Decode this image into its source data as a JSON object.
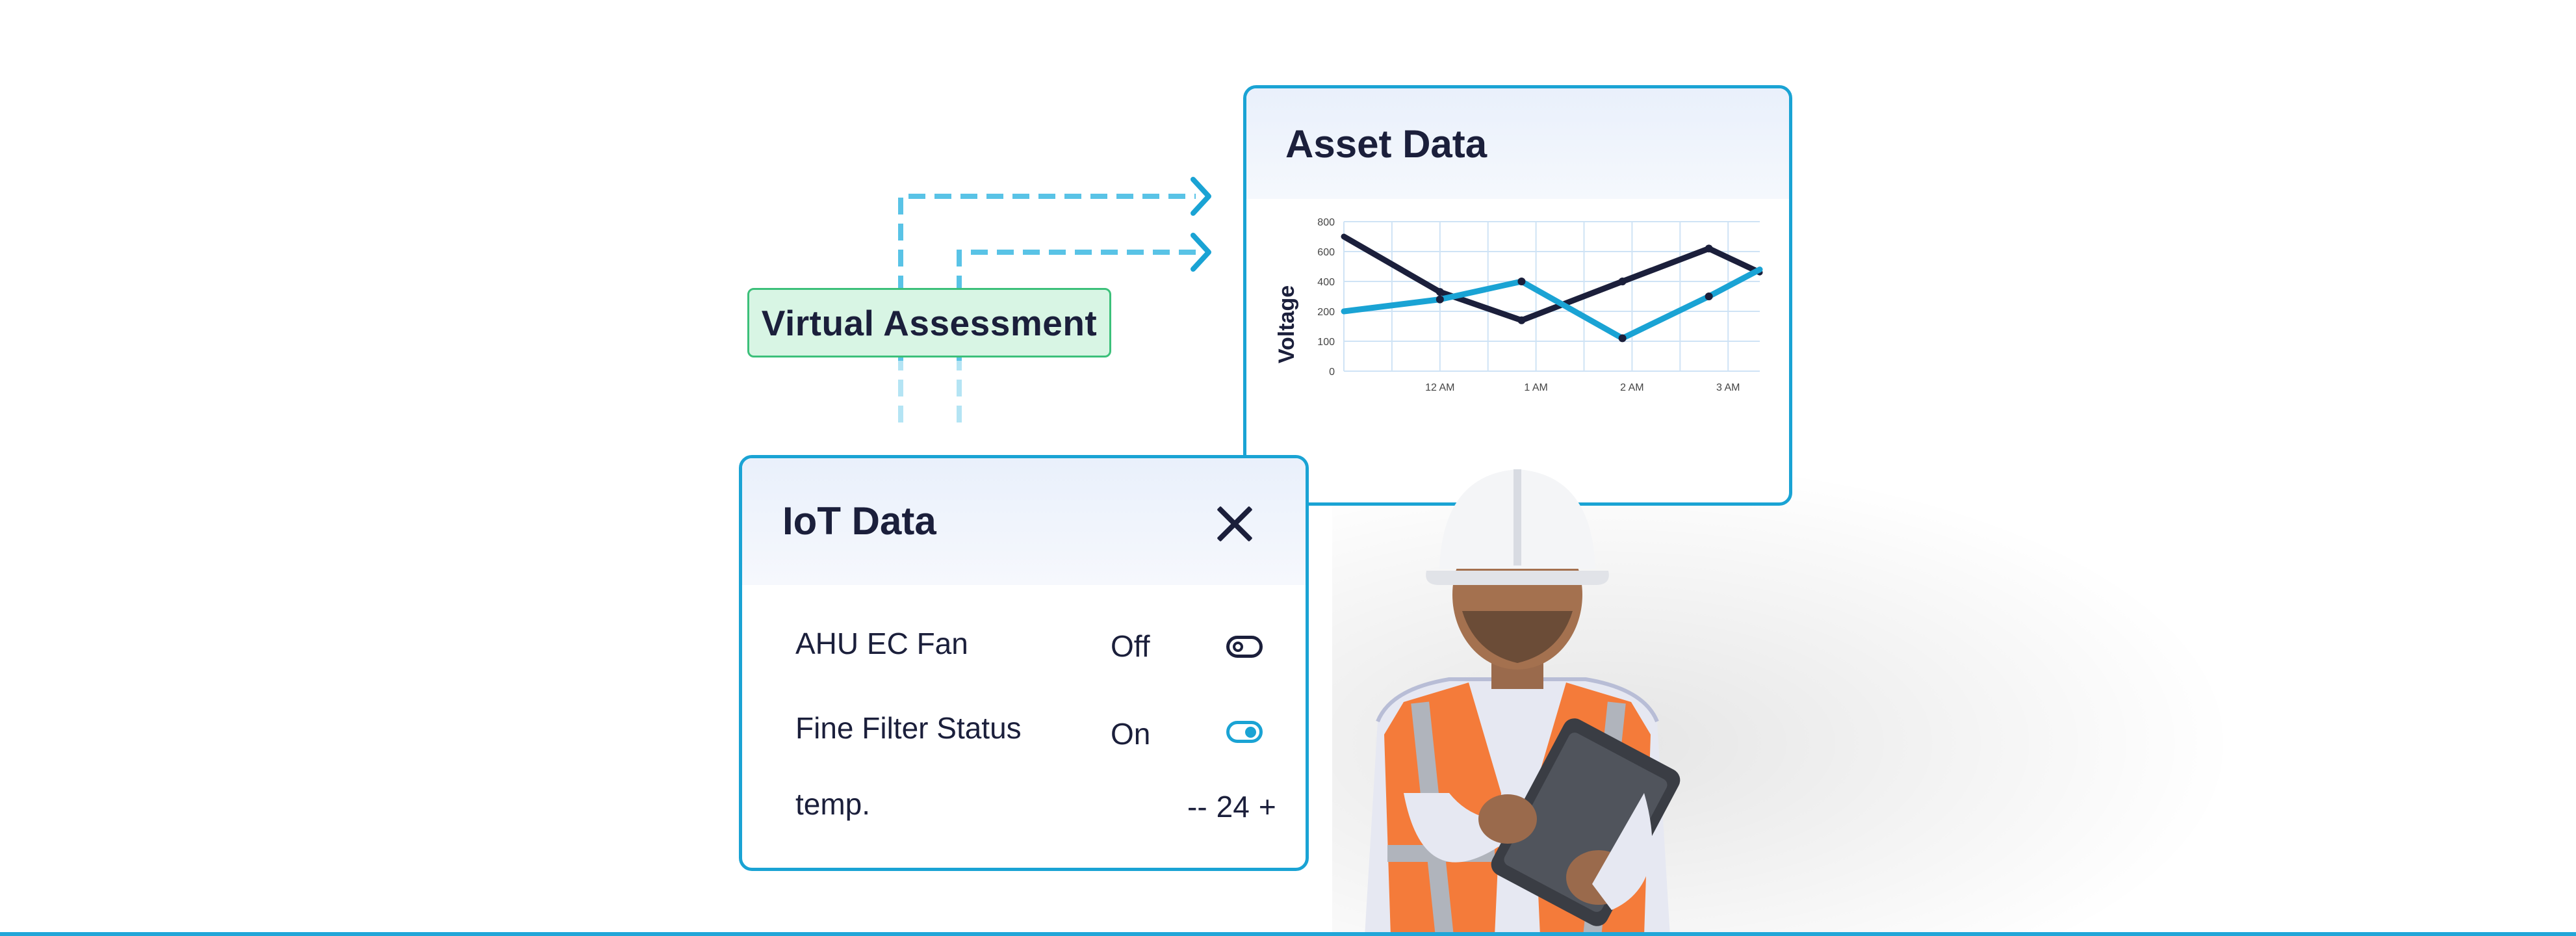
{
  "assessment": {
    "label": "Virtual Assessment"
  },
  "asset_card": {
    "title": "Asset Data"
  },
  "chart_data": {
    "type": "line",
    "title": "",
    "xlabel": "",
    "ylabel": "Voltage",
    "y_ticks": [
      0,
      100,
      200,
      400,
      600,
      800
    ],
    "x_ticks": [
      "12 AM",
      "1 AM",
      "2 AM",
      "3 AM"
    ],
    "x_range": [
      -1,
      3.33
    ],
    "grid": true,
    "legend": "none",
    "series": [
      {
        "color": "#1b1f3b",
        "x": [
          -1,
          0,
          0.85,
          1.9,
          2.8,
          3.33
        ],
        "y": [
          700,
          330,
          170,
          400,
          620,
          460
        ]
      },
      {
        "color": "#1aa3d4",
        "x": [
          -1,
          0,
          0.85,
          1.9,
          2.8,
          3.33
        ],
        "y": [
          200,
          280,
          400,
          110,
          300,
          480
        ]
      }
    ]
  },
  "iot_card": {
    "title": "IoT Data",
    "rows": [
      {
        "label": "AHU EC Fan",
        "value": "Off",
        "toggle": "off"
      },
      {
        "label": "Fine Filter Status",
        "value": "On",
        "toggle": "on"
      },
      {
        "label": "temp.",
        "minus": "--",
        "value": "24",
        "plus": "+"
      }
    ]
  },
  "colors": {
    "accent": "#1aa3d4",
    "navy": "#1b1f3b",
    "green": "#3cc07a"
  }
}
